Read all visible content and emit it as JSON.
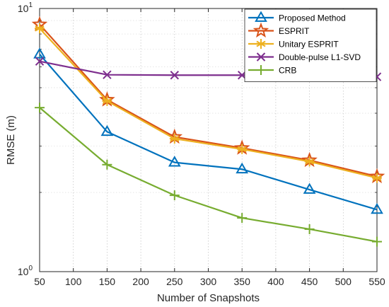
{
  "chart_data": {
    "type": "line",
    "title": "",
    "xlabel": "Number of Snapshots",
    "ylabel": "RMSE (m)",
    "xlim": [
      50,
      550
    ],
    "ylim": [
      1,
      10
    ],
    "y_scale": "log",
    "grid": true,
    "legend_position": "top-right",
    "x_ticks": [
      "50",
      "100",
      "150",
      "200",
      "250",
      "300",
      "350",
      "400",
      "450",
      "500",
      "550"
    ],
    "x_tick_values": [
      50,
      100,
      150,
      200,
      250,
      300,
      350,
      400,
      450,
      500,
      550
    ],
    "y_ticks": [
      {
        "value": 1,
        "base": "10",
        "exp": "0"
      },
      {
        "value": 10,
        "base": "10",
        "exp": "1"
      }
    ],
    "x": [
      50,
      150,
      250,
      350,
      450,
      550
    ],
    "series": [
      {
        "name": "Proposed Method",
        "color": "#0072BD",
        "marker": "triangle",
        "values": [
          6.7,
          3.4,
          2.6,
          2.45,
          2.05,
          1.72
        ]
      },
      {
        "name": "ESPRIT",
        "color": "#D95319",
        "marker": "star",
        "values": [
          8.7,
          4.5,
          3.25,
          2.95,
          2.65,
          2.3
        ]
      },
      {
        "name": "Unitary ESPRIT",
        "color": "#EDB120",
        "marker": "asterisk",
        "values": [
          8.4,
          4.45,
          3.2,
          2.92,
          2.62,
          2.27
        ]
      },
      {
        "name": "Double-pulse L1-SVD",
        "color": "#7E2F8E",
        "marker": "x",
        "values": [
          6.3,
          5.6,
          5.58,
          5.58,
          5.57,
          5.5
        ]
      },
      {
        "name": "CRB",
        "color": "#77AC30",
        "marker": "plus",
        "values": [
          4.2,
          2.55,
          1.95,
          1.6,
          1.45,
          1.3
        ]
      }
    ]
  }
}
